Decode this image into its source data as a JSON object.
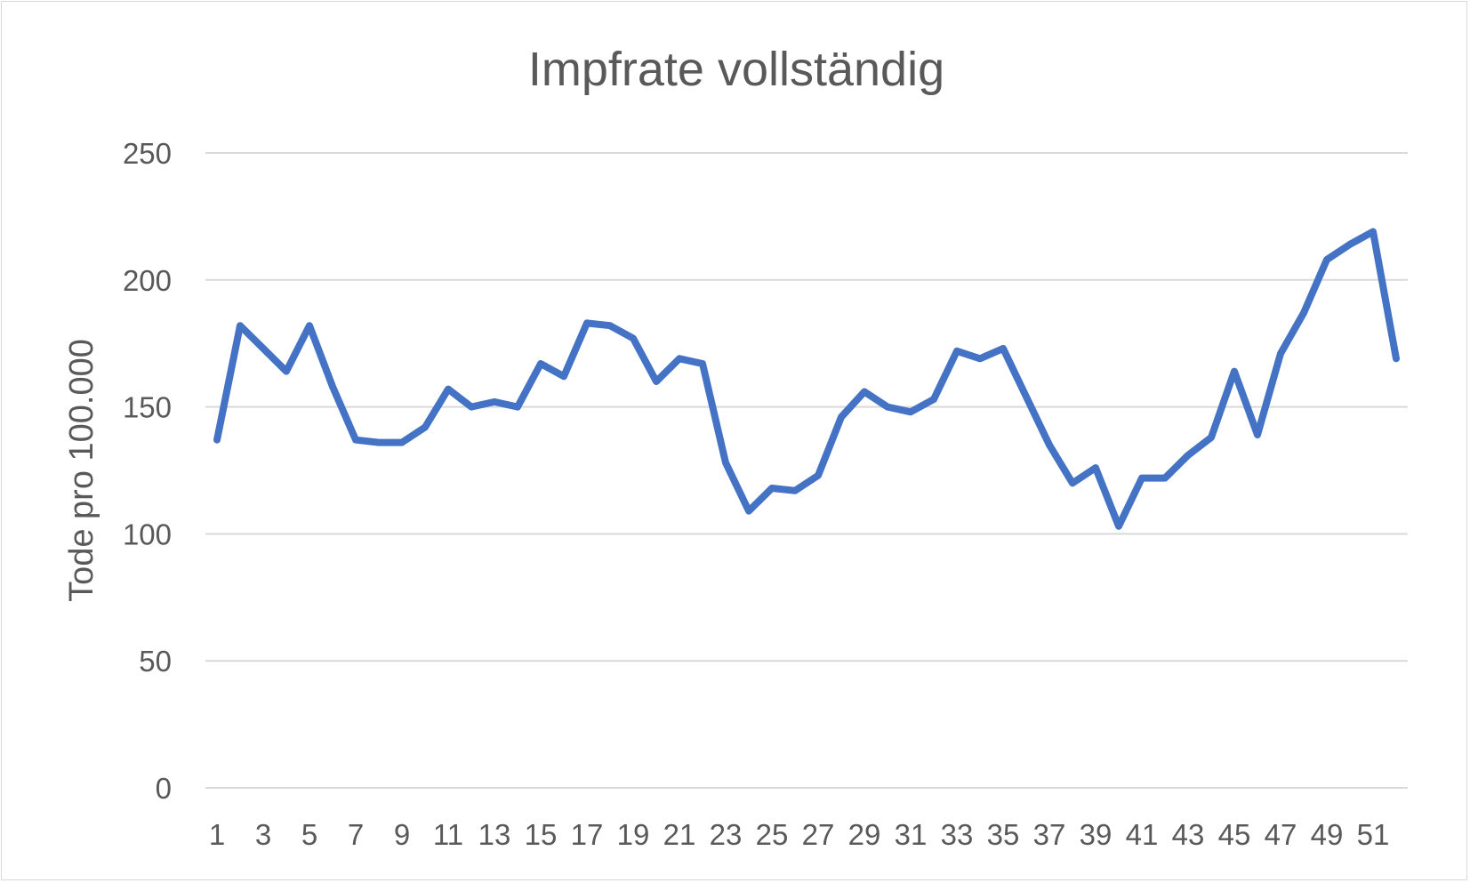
{
  "chart_data": {
    "type": "line",
    "title": "Impfrate vollständig",
    "xlabel": "",
    "ylabel": "Tode pro 100.000",
    "ylim": [
      0,
      250
    ],
    "yticks": [
      0,
      50,
      100,
      150,
      200,
      250
    ],
    "grid": true,
    "legend": "none",
    "colors": {
      "series": "#4472c4",
      "grid": "#d9d9d9",
      "text": "#595959"
    },
    "categories": [
      "1",
      "2",
      "3",
      "4",
      "5",
      "6",
      "7",
      "8",
      "9",
      "10",
      "11",
      "12",
      "13",
      "14",
      "15",
      "16",
      "17",
      "18",
      "19",
      "20",
      "21",
      "22",
      "23",
      "24",
      "25",
      "26",
      "27",
      "28",
      "29",
      "30",
      "31",
      "32",
      "33",
      "34",
      "35",
      "36",
      "37",
      "38",
      "39",
      "40",
      "41",
      "42",
      "43",
      "44",
      "45",
      "46",
      "47",
      "48",
      "49",
      "50",
      "51",
      "52"
    ],
    "tick_labels": [
      "1",
      "3",
      "5",
      "7",
      "9",
      "11",
      "13",
      "15",
      "17",
      "19",
      "21",
      "23",
      "25",
      "27",
      "29",
      "31",
      "33",
      "35",
      "37",
      "39",
      "41",
      "43",
      "45",
      "47",
      "49",
      "51"
    ],
    "series": [
      {
        "values": [
          137,
          182,
          173,
          164,
          182,
          158,
          137,
          136,
          136,
          142,
          157,
          150,
          152,
          150,
          167,
          162,
          183,
          182,
          177,
          160,
          169,
          167,
          128,
          109,
          118,
          117,
          123,
          146,
          156,
          150,
          148,
          153,
          172,
          169,
          173,
          154,
          135,
          120,
          126,
          103,
          122,
          122,
          131,
          138,
          164,
          139,
          171,
          187,
          208,
          214,
          219,
          169
        ]
      }
    ]
  }
}
